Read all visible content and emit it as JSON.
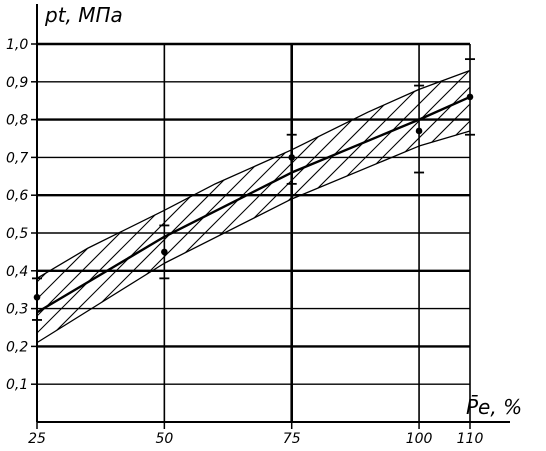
{
  "chart_data": {
    "type": "line",
    "title": "",
    "xlabel": "P̄e, %",
    "ylabel": "pt, МПа",
    "x_ticks": [
      25,
      50,
      75,
      100,
      110
    ],
    "y_ticks": [
      0.1,
      0.2,
      0.3,
      0.4,
      0.5,
      0.6,
      0.7,
      0.8,
      0.9,
      1.0
    ],
    "x_tick_labels": [
      "25",
      "50",
      "75",
      "100",
      "110"
    ],
    "y_tick_labels": [
      "0,1",
      "0,2",
      "0,3",
      "0,4",
      "0,5",
      "0,6",
      "0,7",
      "0,8",
      "0,9",
      "1,0"
    ],
    "xlim": [
      25,
      110
    ],
    "ylim": [
      0,
      1.0
    ],
    "grid": true,
    "hatched_band": true,
    "series": [
      {
        "x": [
          25,
          35,
          50,
          60,
          75,
          90,
          100,
          110
        ],
        "y": [
          0.38,
          0.46,
          0.56,
          0.63,
          0.72,
          0.82,
          0.88,
          0.93
        ]
      },
      {
        "x": [
          25,
          50,
          75,
          100,
          110
        ],
        "y": [
          0.29,
          0.49,
          0.66,
          0.8,
          0.86
        ]
      },
      {
        "x": [
          25,
          50,
          75,
          100,
          110
        ],
        "y": [
          0.21,
          0.42,
          0.59,
          0.73,
          0.77
        ]
      }
    ],
    "points": [
      {
        "x": 25,
        "y": 0.33,
        "range": [
          0.27,
          0.38
        ]
      },
      {
        "x": 50,
        "y": 0.45,
        "range": [
          0.38,
          0.52
        ]
      },
      {
        "x": 75,
        "y": 0.7,
        "range": [
          0.63,
          0.76
        ]
      },
      {
        "x": 100,
        "y": 0.77,
        "range": [
          0.66,
          0.89
        ]
      },
      {
        "x": 110,
        "y": 0.86,
        "range": [
          0.76,
          0.96
        ]
      }
    ]
  }
}
